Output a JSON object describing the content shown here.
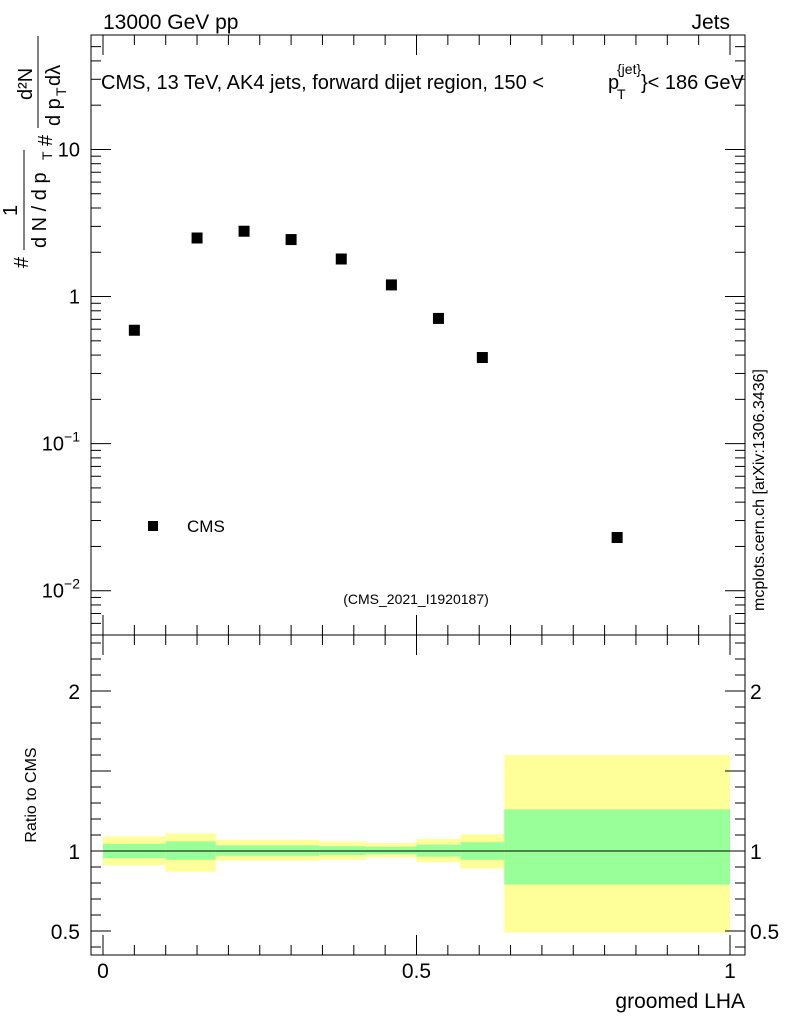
{
  "header": {
    "left": "13000 GeV pp",
    "right": "Jets",
    "side_label": "mcplots.cern.ch [arXiv:1306.3436]",
    "analysis_id": "(CMS_2021_I1920187)"
  },
  "colors": {
    "band_outer": "#ffff99",
    "band_inner": "#99ff99",
    "marker": "#000000",
    "analysis_text": "#999999",
    "side_text": "#7f7f7f"
  },
  "chart_data": [
    {
      "type": "scatter",
      "title": "CMS, 13 TeV, AK4 jets, forward dijet region, 150 < p_T^{jet} < 186 GeV",
      "title_parts": {
        "main": "CMS, 13 TeV, AK4 jets, forward dijet region, 150 <",
        "p": "p",
        "sup": "{jet}",
        "sub": "T",
        "tail": "}< 186 GeV"
      },
      "ylabel_parts": {
        "hash1": "#",
        "one": "1",
        "dn_over_dpt": "d N / d p",
        "t1": "T",
        "hash2": "#",
        "d2n": "d²N",
        "dpt_dlambda": "d p",
        "t2": "T",
        "dlambda": " dλ"
      },
      "xlim": [
        0,
        1
      ],
      "ylim_log": [
        0.005,
        60
      ],
      "y_scale": "log",
      "y_ticks": [
        {
          "value": 0.01,
          "base": "10",
          "exp": "−2"
        },
        {
          "value": 0.1,
          "base": "10",
          "exp": "−1"
        },
        {
          "value": 1,
          "base": "1",
          "exp": ""
        },
        {
          "value": 10,
          "base": "10",
          "exp": ""
        }
      ],
      "series": [
        {
          "name": "CMS",
          "marker": "square",
          "x": [
            0.05,
            0.15,
            0.225,
            0.3,
            0.38,
            0.46,
            0.535,
            0.605,
            0.82
          ],
          "y": [
            0.59,
            2.5,
            2.78,
            2.44,
            1.8,
            1.2,
            0.71,
            0.385,
            0.023
          ]
        }
      ],
      "legend": {
        "label": "CMS",
        "position": "bottom-left"
      }
    },
    {
      "type": "area",
      "ylabel": "Ratio to CMS",
      "xlabel": "groomed LHA",
      "xlim": [
        0,
        1
      ],
      "ylim": [
        0.35,
        2.35
      ],
      "reference_line": 1,
      "x_ticks": [
        {
          "value": 0,
          "label": "0"
        },
        {
          "value": 0.5,
          "label": "0.5"
        },
        {
          "value": 1,
          "label": "1"
        }
      ],
      "y_ticks": [
        {
          "value": 0.5,
          "label": "0.5"
        },
        {
          "value": 1,
          "label": "1"
        },
        {
          "value": 2,
          "label": "2"
        }
      ],
      "bins": [
        {
          "lo": 0.0,
          "hi": 0.1,
          "inner": [
            0.955,
            1.045
          ],
          "outer": [
            0.91,
            1.09
          ]
        },
        {
          "lo": 0.1,
          "hi": 0.18,
          "inner": [
            0.945,
            1.06
          ],
          "outer": [
            0.87,
            1.11
          ]
        },
        {
          "lo": 0.18,
          "hi": 0.345,
          "inner": [
            0.97,
            1.035
          ],
          "outer": [
            0.94,
            1.07
          ]
        },
        {
          "lo": 0.345,
          "hi": 0.42,
          "inner": [
            0.975,
            1.03
          ],
          "outer": [
            0.945,
            1.06
          ]
        },
        {
          "lo": 0.42,
          "hi": 0.5,
          "inner": [
            0.98,
            1.025
          ],
          "outer": [
            0.96,
            1.05
          ]
        },
        {
          "lo": 0.5,
          "hi": 0.57,
          "inner": [
            0.965,
            1.04
          ],
          "outer": [
            0.93,
            1.075
          ]
        },
        {
          "lo": 0.57,
          "hi": 0.64,
          "inner": [
            0.945,
            1.055
          ],
          "outer": [
            0.89,
            1.105
          ]
        },
        {
          "lo": 0.64,
          "hi": 1.0,
          "inner": [
            0.79,
            1.26
          ],
          "outer": [
            0.49,
            1.6
          ]
        }
      ]
    }
  ]
}
